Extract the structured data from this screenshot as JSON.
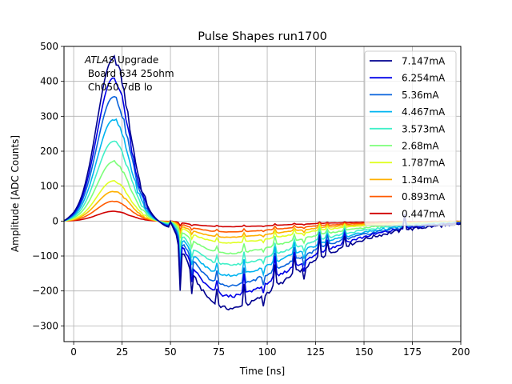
{
  "chart_data": {
    "type": "line",
    "title": "Pulse Shapes run1700",
    "xlabel": "Time [ns]",
    "ylabel": "Amplitude [ADC Counts]",
    "xlim": [
      -5,
      200
    ],
    "ylim": [
      -345,
      500
    ],
    "xticks": [
      0,
      25,
      50,
      75,
      100,
      125,
      150,
      175,
      200
    ],
    "xtick_labels": [
      "0",
      "25",
      "50",
      "75",
      "100",
      "125",
      "150",
      "175",
      "200"
    ],
    "yticks": [
      -300,
      -200,
      -100,
      0,
      100,
      200,
      300,
      400,
      500
    ],
    "ytick_labels": [
      "−300",
      "−200",
      "−100",
      "0",
      "100",
      "200",
      "300",
      "400",
      "500"
    ],
    "grid": true,
    "legend_position": "top-right",
    "annotation": {
      "italic": "ATLAS",
      "line1_rest": " Upgrade",
      "line2": " Board 634 25ohm",
      "line3": " Ch050 7dB lo"
    },
    "series": [
      {
        "name": "7.147mA",
        "color": "#00008f",
        "peak": 465,
        "min": -250
      },
      {
        "name": "6.254mA",
        "color": "#0000e8",
        "peak": 410,
        "min": -215
      },
      {
        "name": "5.36mA",
        "color": "#0a64dc",
        "peak": 355,
        "min": -185
      },
      {
        "name": "4.467mA",
        "color": "#00b4f0",
        "peak": 290,
        "min": -155
      },
      {
        "name": "3.573mA",
        "color": "#40f0c8",
        "peak": 228,
        "min": -125
      },
      {
        "name": "2.68mA",
        "color": "#7cff79",
        "peak": 170,
        "min": -92
      },
      {
        "name": "1.787mA",
        "color": "#e0ff24",
        "peak": 115,
        "min": -62
      },
      {
        "name": "1.34mA",
        "color": "#ffb000",
        "peak": 85,
        "min": -46
      },
      {
        "name": "0.893mA",
        "color": "#ff5a00",
        "peak": 57,
        "min": -31
      },
      {
        "name": "0.447mA",
        "color": "#d00000",
        "peak": 28,
        "min": -16
      }
    ]
  }
}
